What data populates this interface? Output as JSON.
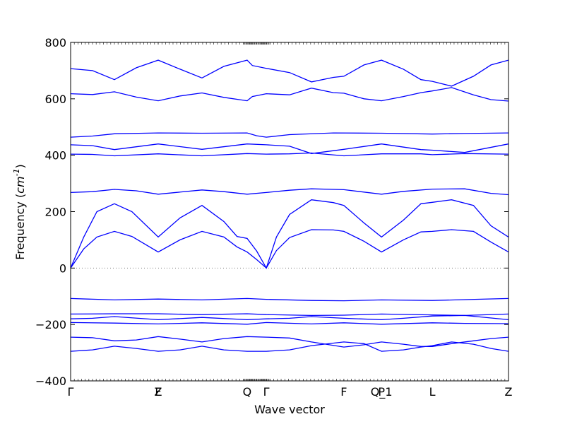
{
  "chart_data": {
    "type": "line",
    "title": "",
    "xlabel": "Wave vector",
    "ylabel": "Frequency ($cm^{-1}$)",
    "ylim": [
      -400,
      800
    ],
    "yticks": [
      -400,
      -200,
      0,
      200,
      400,
      600,
      800
    ],
    "grid": false,
    "line_color": "#0000ff",
    "zero_line_color": "#7f7f7f",
    "xlim": [
      0,
      1
    ],
    "high_symmetry_points": [
      {
        "label": "Γ",
        "x": 0.0
      },
      {
        "label": "F",
        "x": 0.2
      },
      {
        "label": "Z",
        "x": 0.2
      },
      {
        "label": "Q",
        "x": 0.403
      },
      {
        "label": "Γ",
        "x": 0.447
      },
      {
        "label": "F",
        "x": 0.624
      },
      {
        "label": "P",
        "x": 0.71
      },
      {
        "label": "Q_1",
        "x": 0.71
      },
      {
        "label": "L",
        "x": 0.826
      },
      {
        "label": "Z",
        "x": 1.0
      }
    ],
    "series": [
      {
        "values": [
          [
            0,
            707
          ],
          [
            0.05,
            700
          ],
          [
            0.1,
            668
          ],
          [
            0.15,
            710
          ],
          [
            0.2,
            737
          ],
          [
            0.25,
            705
          ],
          [
            0.3,
            674
          ],
          [
            0.35,
            715
          ],
          [
            0.403,
            737
          ],
          [
            0.415,
            718
          ],
          [
            0.447,
            708
          ],
          [
            0.5,
            693
          ],
          [
            0.55,
            660
          ],
          [
            0.6,
            676
          ],
          [
            0.624,
            680
          ],
          [
            0.67,
            720
          ],
          [
            0.71,
            737
          ],
          [
            0.76,
            705
          ],
          [
            0.8,
            668
          ],
          [
            0.826,
            662
          ],
          [
            0.87,
            645
          ],
          [
            0.92,
            680
          ],
          [
            0.96,
            720
          ],
          [
            1.0,
            737
          ]
        ]
      },
      {
        "values": [
          [
            0,
            618
          ],
          [
            0.05,
            615
          ],
          [
            0.1,
            625
          ],
          [
            0.15,
            606
          ],
          [
            0.2,
            593
          ],
          [
            0.25,
            610
          ],
          [
            0.3,
            621
          ],
          [
            0.35,
            605
          ],
          [
            0.403,
            593
          ],
          [
            0.415,
            608
          ],
          [
            0.447,
            618
          ],
          [
            0.5,
            614
          ],
          [
            0.55,
            638
          ],
          [
            0.6,
            622
          ],
          [
            0.624,
            620
          ],
          [
            0.67,
            600
          ],
          [
            0.71,
            593
          ],
          [
            0.76,
            608
          ],
          [
            0.8,
            622
          ],
          [
            0.826,
            628
          ],
          [
            0.87,
            640
          ],
          [
            0.92,
            614
          ],
          [
            0.96,
            597
          ],
          [
            1.0,
            592
          ]
        ]
      },
      {
        "values": [
          [
            0,
            464
          ],
          [
            0.05,
            468
          ],
          [
            0.1,
            476
          ],
          [
            0.2,
            479
          ],
          [
            0.3,
            478
          ],
          [
            0.403,
            479
          ],
          [
            0.425,
            469
          ],
          [
            0.447,
            464
          ],
          [
            0.5,
            473
          ],
          [
            0.6,
            479
          ],
          [
            0.71,
            478
          ],
          [
            0.826,
            475
          ],
          [
            0.9,
            477
          ],
          [
            1.0,
            479
          ]
        ]
      },
      {
        "values": [
          [
            0,
            437
          ],
          [
            0.05,
            434
          ],
          [
            0.1,
            420
          ],
          [
            0.2,
            440
          ],
          [
            0.3,
            421
          ],
          [
            0.403,
            440
          ],
          [
            0.447,
            437
          ],
          [
            0.5,
            432
          ],
          [
            0.55,
            406
          ],
          [
            0.624,
            421
          ],
          [
            0.71,
            440
          ],
          [
            0.8,
            420
          ],
          [
            0.826,
            418
          ],
          [
            0.9,
            410
          ],
          [
            1.0,
            440
          ]
        ]
      },
      {
        "values": [
          [
            0,
            404
          ],
          [
            0.05,
            403
          ],
          [
            0.1,
            398
          ],
          [
            0.2,
            405
          ],
          [
            0.3,
            398
          ],
          [
            0.403,
            406
          ],
          [
            0.447,
            404
          ],
          [
            0.5,
            405
          ],
          [
            0.55,
            408
          ],
          [
            0.624,
            398
          ],
          [
            0.71,
            405
          ],
          [
            0.8,
            405
          ],
          [
            0.826,
            402
          ],
          [
            0.9,
            406
          ],
          [
            1.0,
            404
          ]
        ]
      },
      {
        "values": [
          [
            0,
            268
          ],
          [
            0.05,
            271
          ],
          [
            0.1,
            279
          ],
          [
            0.15,
            274
          ],
          [
            0.2,
            262
          ],
          [
            0.3,
            277
          ],
          [
            0.35,
            271
          ],
          [
            0.403,
            262
          ],
          [
            0.447,
            268
          ],
          [
            0.5,
            276
          ],
          [
            0.55,
            281
          ],
          [
            0.624,
            278
          ],
          [
            0.71,
            262
          ],
          [
            0.76,
            272
          ],
          [
            0.826,
            280
          ],
          [
            0.9,
            281
          ],
          [
            0.96,
            265
          ],
          [
            1.0,
            260
          ]
        ]
      },
      {
        "values": [
          [
            0,
            0
          ],
          [
            0.03,
            110
          ],
          [
            0.06,
            200
          ],
          [
            0.1,
            228
          ],
          [
            0.14,
            200
          ],
          [
            0.2,
            110
          ],
          [
            0.25,
            178
          ],
          [
            0.3,
            222
          ],
          [
            0.35,
            165
          ],
          [
            0.38,
            112
          ],
          [
            0.403,
            105
          ],
          [
            0.425,
            60
          ],
          [
            0.447,
            0
          ],
          [
            0.47,
            110
          ],
          [
            0.5,
            190
          ],
          [
            0.55,
            242
          ],
          [
            0.6,
            232
          ],
          [
            0.624,
            222
          ],
          [
            0.67,
            160
          ],
          [
            0.71,
            110
          ],
          [
            0.76,
            170
          ],
          [
            0.8,
            228
          ],
          [
            0.826,
            233
          ],
          [
            0.87,
            242
          ],
          [
            0.92,
            222
          ],
          [
            0.96,
            150
          ],
          [
            1.0,
            110
          ]
        ]
      },
      {
        "values": [
          [
            0,
            0
          ],
          [
            0.03,
            68
          ],
          [
            0.06,
            110
          ],
          [
            0.1,
            130
          ],
          [
            0.14,
            112
          ],
          [
            0.2,
            57
          ],
          [
            0.25,
            100
          ],
          [
            0.3,
            130
          ],
          [
            0.35,
            110
          ],
          [
            0.38,
            75
          ],
          [
            0.403,
            57
          ],
          [
            0.425,
            30
          ],
          [
            0.447,
            0
          ],
          [
            0.47,
            62
          ],
          [
            0.5,
            108
          ],
          [
            0.55,
            136
          ],
          [
            0.6,
            135
          ],
          [
            0.624,
            130
          ],
          [
            0.67,
            95
          ],
          [
            0.71,
            57
          ],
          [
            0.76,
            100
          ],
          [
            0.8,
            128
          ],
          [
            0.826,
            130
          ],
          [
            0.87,
            136
          ],
          [
            0.92,
            130
          ],
          [
            0.96,
            92
          ],
          [
            1.0,
            57
          ]
        ]
      },
      {
        "values": [
          [
            0,
            -108
          ],
          [
            0.1,
            -113
          ],
          [
            0.2,
            -110
          ],
          [
            0.3,
            -113
          ],
          [
            0.403,
            -108
          ],
          [
            0.447,
            -111
          ],
          [
            0.55,
            -115
          ],
          [
            0.624,
            -116
          ],
          [
            0.71,
            -113
          ],
          [
            0.826,
            -115
          ],
          [
            0.9,
            -112
          ],
          [
            1.0,
            -108
          ]
        ]
      },
      {
        "values": [
          [
            0,
            -163
          ],
          [
            0.1,
            -162
          ],
          [
            0.2,
            -162
          ],
          [
            0.3,
            -165
          ],
          [
            0.403,
            -162
          ],
          [
            0.447,
            -165
          ],
          [
            0.55,
            -168
          ],
          [
            0.624,
            -167
          ],
          [
            0.71,
            -163
          ],
          [
            0.826,
            -166
          ],
          [
            0.9,
            -168
          ],
          [
            1.0,
            -163
          ]
        ]
      },
      {
        "values": [
          [
            0,
            -180
          ],
          [
            0.05,
            -178
          ],
          [
            0.1,
            -172
          ],
          [
            0.2,
            -183
          ],
          [
            0.3,
            -175
          ],
          [
            0.403,
            -183
          ],
          [
            0.447,
            -180
          ],
          [
            0.5,
            -178
          ],
          [
            0.55,
            -172
          ],
          [
            0.624,
            -178
          ],
          [
            0.71,
            -183
          ],
          [
            0.76,
            -178
          ],
          [
            0.826,
            -170
          ],
          [
            0.9,
            -168
          ],
          [
            1.0,
            -183
          ]
        ]
      },
      {
        "values": [
          [
            0,
            -193
          ],
          [
            0.1,
            -195
          ],
          [
            0.2,
            -198
          ],
          [
            0.3,
            -194
          ],
          [
            0.403,
            -199
          ],
          [
            0.447,
            -193
          ],
          [
            0.55,
            -198
          ],
          [
            0.624,
            -194
          ],
          [
            0.71,
            -199
          ],
          [
            0.826,
            -194
          ],
          [
            0.9,
            -196
          ],
          [
            1.0,
            -197
          ]
        ]
      },
      {
        "values": [
          [
            0,
            -245
          ],
          [
            0.05,
            -247
          ],
          [
            0.1,
            -258
          ],
          [
            0.15,
            -255
          ],
          [
            0.2,
            -243
          ],
          [
            0.25,
            -252
          ],
          [
            0.3,
            -262
          ],
          [
            0.35,
            -250
          ],
          [
            0.403,
            -243
          ],
          [
            0.447,
            -245
          ],
          [
            0.5,
            -248
          ],
          [
            0.55,
            -262
          ],
          [
            0.624,
            -280
          ],
          [
            0.67,
            -272
          ],
          [
            0.71,
            -262
          ],
          [
            0.76,
            -270
          ],
          [
            0.8,
            -278
          ],
          [
            0.826,
            -278
          ],
          [
            0.87,
            -268
          ],
          [
            0.92,
            -258
          ],
          [
            0.96,
            -250
          ],
          [
            1.0,
            -245
          ]
        ]
      },
      {
        "values": [
          [
            0,
            -295
          ],
          [
            0.05,
            -290
          ],
          [
            0.1,
            -277
          ],
          [
            0.15,
            -285
          ],
          [
            0.2,
            -295
          ],
          [
            0.25,
            -290
          ],
          [
            0.3,
            -277
          ],
          [
            0.35,
            -290
          ],
          [
            0.403,
            -295
          ],
          [
            0.447,
            -295
          ],
          [
            0.5,
            -290
          ],
          [
            0.55,
            -275
          ],
          [
            0.624,
            -262
          ],
          [
            0.67,
            -268
          ],
          [
            0.71,
            -295
          ],
          [
            0.76,
            -290
          ],
          [
            0.8,
            -280
          ],
          [
            0.826,
            -275
          ],
          [
            0.87,
            -262
          ],
          [
            0.92,
            -270
          ],
          [
            0.96,
            -285
          ],
          [
            1.0,
            -295
          ]
        ]
      }
    ]
  }
}
